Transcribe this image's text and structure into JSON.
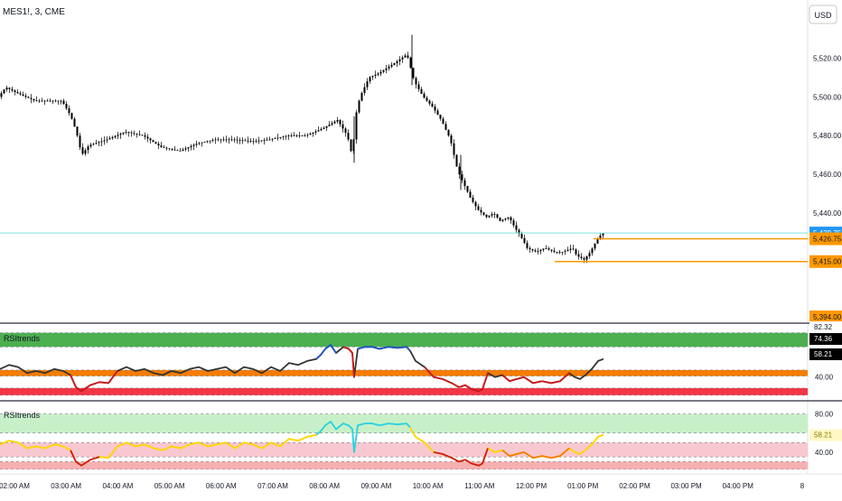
{
  "header": {
    "symbol_label": "MES1!, 3, CME",
    "currency_label": "USD"
  },
  "colors": {
    "candle": "#000000",
    "last_price_line": "#7fe3e0",
    "last_price_tag": "#2196f3",
    "level_line": "#ff9800",
    "level_tag": "#ff9800",
    "band_green": "#4caf50",
    "band_orange": "#f57c00",
    "band_red": "#f23645",
    "rsi_blue": "#1e56c8",
    "rsi_dark": "#333333",
    "rsi_red": "#d01818",
    "band2_green": "#c8f0c8",
    "band2_pink": "#f8c8d0",
    "band2_red": "#f7b0b0",
    "rsi2_cyan": "#22d3ee",
    "rsi2_yellow": "#ffd600",
    "rsi2_orange": "#f57c00",
    "rsi2_red": "#d01818"
  },
  "chart_data": [
    {
      "type": "candlestick",
      "title": "MES1!, 3, CME",
      "ylabel": "USD",
      "ylim": [
        5386,
        5536
      ],
      "y_ticks": [
        "5,520.00",
        "5,500.00",
        "5,480.00",
        "5,460.00",
        "5,440.00"
      ],
      "y_tick_values": [
        5520,
        5500,
        5480,
        5460,
        5440
      ],
      "x_ticks": [
        "02:00 AM",
        "03:00 AM",
        "04:00 AM",
        "05:00 AM",
        "06:00 AM",
        "07:00 AM",
        "08:00 AM",
        "09:00 AM",
        "10:00 AM",
        "11:00 AM",
        "12:00 PM",
        "01:00 PM",
        "02:00 PM",
        "03:00 PM",
        "04:00 PM",
        "8"
      ],
      "close_path": [
        [
          0,
          5500
        ],
        [
          8,
          5505
        ],
        [
          20,
          5502
        ],
        [
          40,
          5498
        ],
        [
          70,
          5498
        ],
        [
          80,
          5490
        ],
        [
          86,
          5482
        ],
        [
          92,
          5470
        ],
        [
          100,
          5475
        ],
        [
          120,
          5478
        ],
        [
          140,
          5482
        ],
        [
          160,
          5480
        ],
        [
          180,
          5474
        ],
        [
          200,
          5472
        ],
        [
          220,
          5476
        ],
        [
          240,
          5478
        ],
        [
          260,
          5478
        ],
        [
          280,
          5477
        ],
        [
          300,
          5478
        ],
        [
          320,
          5480
        ],
        [
          340,
          5480
        ],
        [
          360,
          5484
        ],
        [
          375,
          5488
        ],
        [
          386,
          5480
        ],
        [
          392,
          5468
        ],
        [
          394,
          5488
        ],
        [
          400,
          5500
        ],
        [
          410,
          5510
        ],
        [
          420,
          5512
        ],
        [
          440,
          5518
        ],
        [
          452,
          5522
        ],
        [
          460,
          5508
        ],
        [
          470,
          5500
        ],
        [
          480,
          5495
        ],
        [
          490,
          5488
        ],
        [
          500,
          5478
        ],
        [
          508,
          5462
        ],
        [
          515,
          5455
        ],
        [
          522,
          5448
        ],
        [
          530,
          5442
        ],
        [
          540,
          5438
        ],
        [
          548,
          5440
        ],
        [
          555,
          5436
        ],
        [
          565,
          5438
        ],
        [
          572,
          5432
        ],
        [
          578,
          5428
        ],
        [
          585,
          5422
        ],
        [
          595,
          5420
        ],
        [
          605,
          5422
        ],
        [
          615,
          5420
        ],
        [
          625,
          5420
        ],
        [
          635,
          5422
        ],
        [
          640,
          5418
        ],
        [
          648,
          5416
        ],
        [
          655,
          5420
        ],
        [
          662,
          5426
        ],
        [
          668,
          5429.75
        ]
      ],
      "last_price": "5,429.75",
      "last_price_value": 5429.75,
      "levels": [
        {
          "label": "5,426.75",
          "value": 5426.75,
          "x_start": 657
        },
        {
          "label": "5,415.00",
          "value": 5415.0,
          "x_start": 614
        }
      ],
      "scale_bottom_label": "5,394.00",
      "scale_bottom_value": 5394
    },
    {
      "type": "line",
      "series_label": "RSItrends",
      "ylim": [
        20,
        90
      ],
      "y_ticks": [
        "40.00"
      ],
      "y_tick_values": [
        40
      ],
      "price_tags": [
        {
          "label": "82.32",
          "value": 82.32
        },
        {
          "label": "74.36",
          "value": 74.36
        },
        {
          "label": "58.21",
          "value": 58.21
        }
      ],
      "bands": [
        {
          "from": 70,
          "to": 84,
          "color_key": "band_green"
        },
        {
          "from": 41,
          "to": 47,
          "color_key": "band_orange"
        },
        {
          "from": 22,
          "to": 29,
          "color_key": "band_red"
        }
      ],
      "rsi_path": [
        [
          0,
          48
        ],
        [
          10,
          52
        ],
        [
          20,
          50
        ],
        [
          30,
          44
        ],
        [
          40,
          46
        ],
        [
          50,
          44
        ],
        [
          60,
          48
        ],
        [
          70,
          46
        ],
        [
          78,
          42
        ],
        [
          84,
          30
        ],
        [
          90,
          26
        ],
        [
          100,
          32
        ],
        [
          110,
          35
        ],
        [
          120,
          34
        ],
        [
          130,
          46
        ],
        [
          140,
          50
        ],
        [
          150,
          46
        ],
        [
          160,
          48
        ],
        [
          170,
          44
        ],
        [
          180,
          42
        ],
        [
          190,
          46
        ],
        [
          200,
          44
        ],
        [
          210,
          48
        ],
        [
          220,
          50
        ],
        [
          230,
          46
        ],
        [
          240,
          48
        ],
        [
          250,
          50
        ],
        [
          260,
          44
        ],
        [
          270,
          50
        ],
        [
          280,
          48
        ],
        [
          290,
          44
        ],
        [
          300,
          50
        ],
        [
          310,
          46
        ],
        [
          320,
          54
        ],
        [
          330,
          52
        ],
        [
          340,
          56
        ],
        [
          350,
          58
        ],
        [
          355,
          62
        ],
        [
          360,
          68
        ],
        [
          366,
          72
        ],
        [
          372,
          64
        ],
        [
          380,
          70
        ],
        [
          386,
          68
        ],
        [
          390,
          64
        ],
        [
          392,
          40
        ],
        [
          396,
          68
        ],
        [
          404,
          70
        ],
        [
          412,
          70
        ],
        [
          420,
          68
        ],
        [
          430,
          70
        ],
        [
          440,
          69
        ],
        [
          450,
          70
        ],
        [
          454,
          66
        ],
        [
          460,
          56
        ],
        [
          470,
          50
        ],
        [
          480,
          40
        ],
        [
          490,
          38
        ],
        [
          500,
          34
        ],
        [
          508,
          30
        ],
        [
          515,
          32
        ],
        [
          522,
          28
        ],
        [
          530,
          26
        ],
        [
          534,
          28
        ],
        [
          540,
          44
        ],
        [
          548,
          40
        ],
        [
          556,
          42
        ],
        [
          564,
          36
        ],
        [
          572,
          38
        ],
        [
          580,
          40
        ],
        [
          590,
          34
        ],
        [
          600,
          36
        ],
        [
          610,
          34
        ],
        [
          620,
          36
        ],
        [
          630,
          44
        ],
        [
          636,
          40
        ],
        [
          642,
          38
        ],
        [
          648,
          42
        ],
        [
          655,
          48
        ],
        [
          662,
          56
        ],
        [
          668,
          58
        ]
      ],
      "colored_segments": [
        {
          "range": [
            350,
            372
          ],
          "color_key": "rsi_blue"
        },
        {
          "range": [
            380,
            392
          ],
          "color_key": "rsi_red"
        },
        {
          "range": [
            396,
            454
          ],
          "color_key": "rsi_blue"
        },
        {
          "range": [
            78,
            130
          ],
          "color_key": "rsi_red"
        },
        {
          "range": [
            470,
            540
          ],
          "color_key": "rsi_red"
        },
        {
          "range": [
            556,
            630
          ],
          "color_key": "rsi_red"
        }
      ]
    },
    {
      "type": "line",
      "series_label": "RSItrends",
      "ylim": [
        20,
        90
      ],
      "y_ticks": [
        "80.00",
        "40.00"
      ],
      "y_tick_values": [
        80,
        40
      ],
      "price_tags": [
        {
          "label": "58.21",
          "value": 58.21
        }
      ],
      "bands": [
        {
          "from": 60,
          "to": 80,
          "color_key": "band2_green"
        },
        {
          "from": 35,
          "to": 50,
          "color_key": "band2_pink"
        },
        {
          "from": 22,
          "to": 30,
          "color_key": "band2_red"
        }
      ],
      "rsi_path": [
        [
          0,
          48
        ],
        [
          10,
          52
        ],
        [
          20,
          50
        ],
        [
          30,
          44
        ],
        [
          40,
          46
        ],
        [
          50,
          44
        ],
        [
          60,
          48
        ],
        [
          70,
          46
        ],
        [
          78,
          42
        ],
        [
          84,
          30
        ],
        [
          90,
          26
        ],
        [
          100,
          32
        ],
        [
          110,
          35
        ],
        [
          120,
          34
        ],
        [
          130,
          46
        ],
        [
          140,
          50
        ],
        [
          150,
          46
        ],
        [
          160,
          48
        ],
        [
          170,
          44
        ],
        [
          180,
          42
        ],
        [
          190,
          46
        ],
        [
          200,
          44
        ],
        [
          210,
          48
        ],
        [
          220,
          50
        ],
        [
          230,
          46
        ],
        [
          240,
          48
        ],
        [
          250,
          50
        ],
        [
          260,
          44
        ],
        [
          270,
          50
        ],
        [
          280,
          48
        ],
        [
          290,
          44
        ],
        [
          300,
          50
        ],
        [
          310,
          46
        ],
        [
          320,
          54
        ],
        [
          330,
          52
        ],
        [
          340,
          56
        ],
        [
          350,
          58
        ],
        [
          355,
          62
        ],
        [
          360,
          68
        ],
        [
          366,
          72
        ],
        [
          372,
          64
        ],
        [
          380,
          70
        ],
        [
          386,
          68
        ],
        [
          390,
          64
        ],
        [
          392,
          40
        ],
        [
          396,
          68
        ],
        [
          404,
          70
        ],
        [
          412,
          70
        ],
        [
          420,
          68
        ],
        [
          430,
          70
        ],
        [
          440,
          69
        ],
        [
          450,
          70
        ],
        [
          454,
          66
        ],
        [
          460,
          56
        ],
        [
          470,
          50
        ],
        [
          480,
          40
        ],
        [
          490,
          38
        ],
        [
          500,
          34
        ],
        [
          508,
          30
        ],
        [
          515,
          32
        ],
        [
          522,
          28
        ],
        [
          530,
          26
        ],
        [
          534,
          28
        ],
        [
          540,
          44
        ],
        [
          548,
          40
        ],
        [
          556,
          42
        ],
        [
          564,
          36
        ],
        [
          572,
          38
        ],
        [
          580,
          40
        ],
        [
          590,
          34
        ],
        [
          600,
          36
        ],
        [
          610,
          34
        ],
        [
          620,
          36
        ],
        [
          630,
          44
        ],
        [
          636,
          40
        ],
        [
          642,
          38
        ],
        [
          648,
          42
        ],
        [
          655,
          48
        ],
        [
          662,
          56
        ],
        [
          668,
          58
        ]
      ],
      "colored_segments": [
        {
          "range": [
            0,
            350
          ],
          "color_key": "rsi2_yellow"
        },
        {
          "range": [
            350,
            454
          ],
          "color_key": "rsi2_cyan"
        },
        {
          "range": [
            454,
            668
          ],
          "color_key": "rsi2_yellow"
        },
        {
          "range": [
            78,
            110
          ],
          "color_key": "rsi2_red"
        },
        {
          "range": [
            480,
            540
          ],
          "color_key": "rsi2_red"
        },
        {
          "range": [
            556,
            630
          ],
          "color_key": "rsi2_orange"
        }
      ]
    }
  ]
}
